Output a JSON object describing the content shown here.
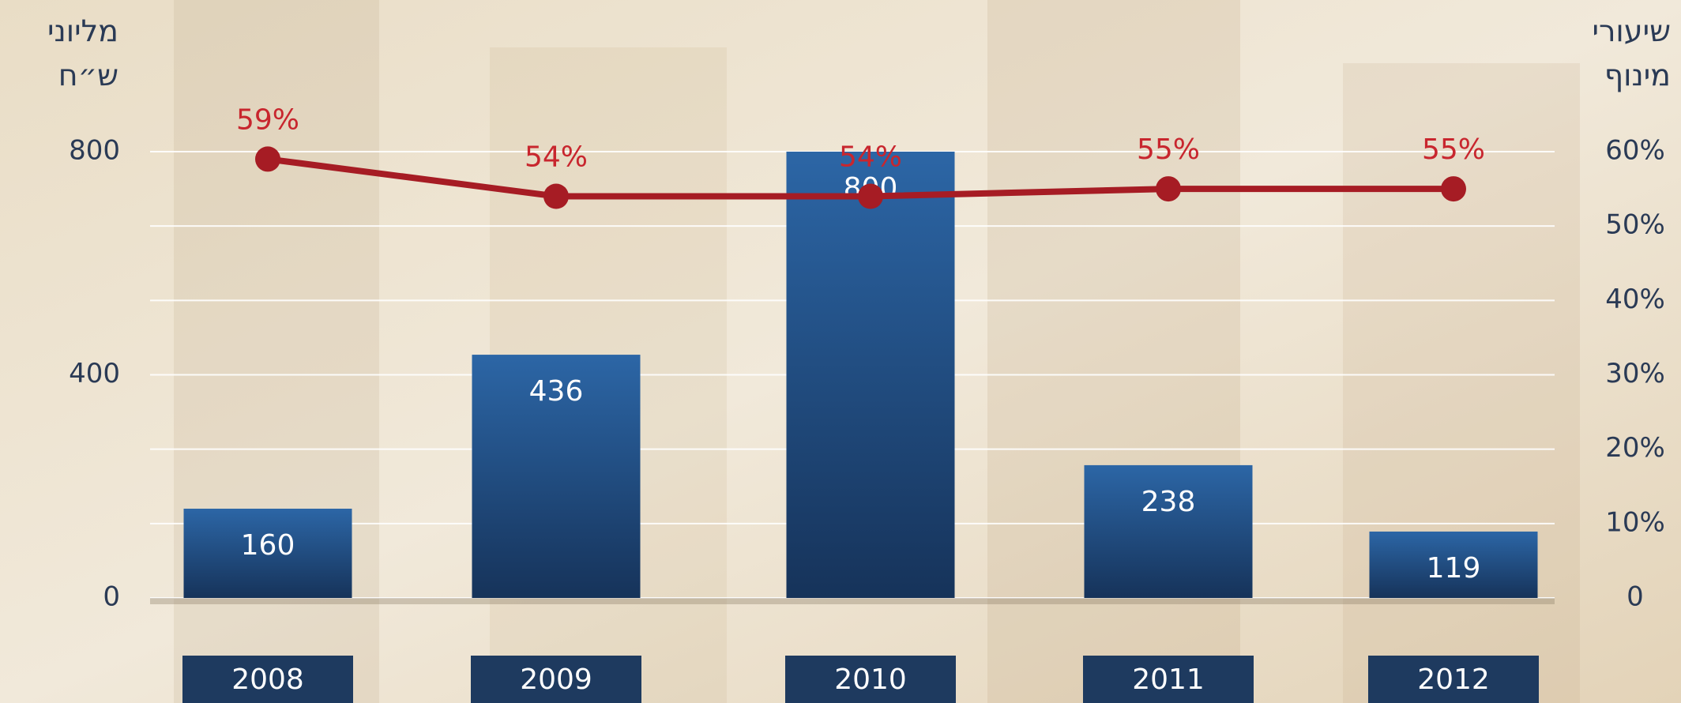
{
  "chart_data": {
    "type": "bar_line",
    "y_label": [
      "מליוני",
      "ש״ח"
    ],
    "y2_label": [
      "שיעורי",
      "מינוף"
    ],
    "categories": [
      "2008",
      "2009",
      "2010",
      "2011",
      "2012"
    ],
    "series": [
      {
        "type": "bar",
        "color": "#1f4a7e",
        "values": [
          160,
          436,
          800,
          238,
          119
        ]
      },
      {
        "type": "line",
        "axis": "y2",
        "color": "#a61c24",
        "values": [
          59,
          54,
          54,
          55,
          55
        ],
        "value_labels": [
          "59%",
          "54%",
          "54%",
          "55%",
          "55%"
        ]
      }
    ],
    "ylim": [
      0,
      800
    ],
    "yticks": [
      0,
      400,
      800
    ],
    "y2lim": [
      0,
      60
    ],
    "y2ticks": [
      {
        "value": 0,
        "label": "0"
      },
      {
        "value": 10,
        "label": "10%"
      },
      {
        "value": 20,
        "label": "20%"
      },
      {
        "value": 30,
        "label": "30%"
      },
      {
        "value": 40,
        "label": "40%"
      },
      {
        "value": 50,
        "label": "50%"
      },
      {
        "value": 60,
        "label": "60%"
      }
    ],
    "grid": true
  }
}
